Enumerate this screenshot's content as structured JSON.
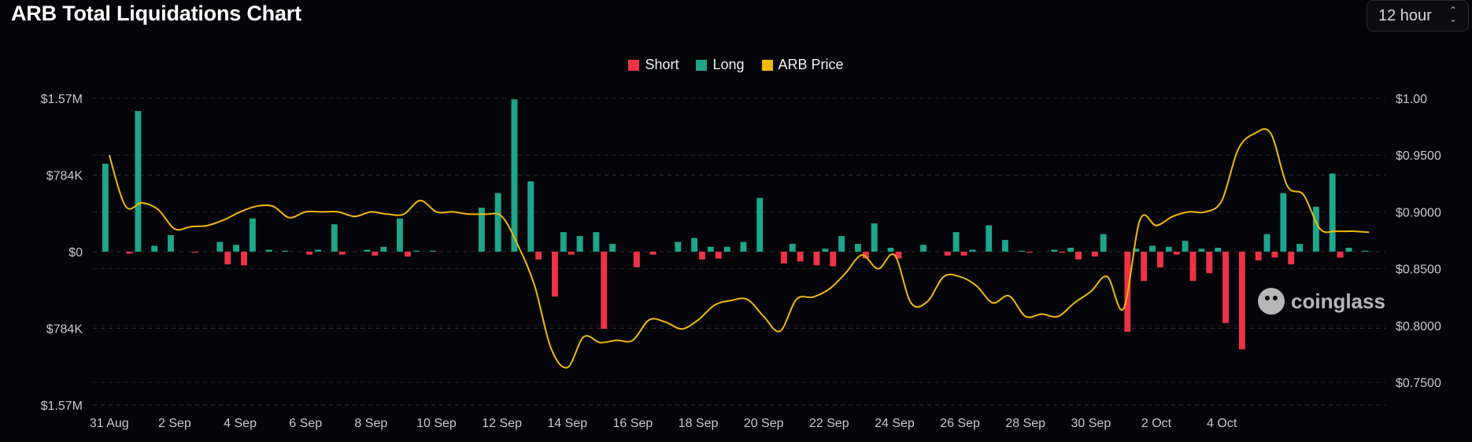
{
  "title": "ARB Total Liquidations Chart",
  "interval": {
    "label": "12 hour"
  },
  "legend": [
    {
      "name": "Short",
      "color": "#ee3346"
    },
    {
      "name": "Long",
      "color": "#1fa58a"
    },
    {
      "name": "ARB Price",
      "color": "#f0b90b"
    }
  ],
  "watermark": "coinglass",
  "chart_data": {
    "type": "bar",
    "title": "ARB Total Liquidations Chart",
    "x_labels": [
      "31 Aug",
      "2 Sep",
      "4 Sep",
      "6 Sep",
      "8 Sep",
      "10 Sep",
      "12 Sep",
      "14 Sep",
      "16 Sep",
      "18 Sep",
      "20 Sep",
      "22 Sep",
      "24 Sep",
      "26 Sep",
      "28 Sep",
      "30 Sep",
      "2 Oct",
      "4 Oct"
    ],
    "y_left_ticks": [
      "$1.57M",
      "$784K",
      "$0",
      "$784K",
      "$1.57M"
    ],
    "y_left_values": [
      1570000,
      784000,
      0,
      -784000,
      -1570000
    ],
    "y_right_ticks": [
      "$1.00",
      "$0.9500",
      "$0.9000",
      "$0.8500",
      "$0.8000",
      "$0.7500"
    ],
    "y_right_values": [
      1.0,
      0.95,
      0.9,
      0.85,
      0.8,
      0.75
    ],
    "ylim_left": [
      -1570000,
      1570000
    ],
    "ylim_right": [
      0.73,
      1.0
    ],
    "grid": true,
    "legend_position": "top-center",
    "points_per_label": 4,
    "series": [
      {
        "name": "Long",
        "values": [
          900000,
          0,
          1440000,
          60000,
          170000,
          0,
          0,
          100000,
          70000,
          340000,
          20000,
          10000,
          0,
          20000,
          280000,
          0,
          20000,
          50000,
          340000,
          10000,
          10000,
          0,
          0,
          450000,
          600000,
          1560000,
          720000,
          0,
          200000,
          160000,
          200000,
          80000,
          0,
          0,
          0,
          100000,
          140000,
          50000,
          50000,
          100000,
          550000,
          0,
          80000,
          0,
          30000,
          160000,
          80000,
          290000,
          40000,
          0,
          70000,
          0,
          200000,
          20000,
          270000,
          120000,
          10000,
          0,
          20000,
          40000,
          0,
          180000,
          0,
          30000,
          60000,
          50000,
          110000,
          30000,
          40000,
          0,
          0,
          180000,
          600000,
          80000,
          460000,
          800000,
          40000,
          10000
        ]
      },
      {
        "name": "Short",
        "values": [
          0,
          -20000,
          0,
          0,
          0,
          -10000,
          0,
          -130000,
          -140000,
          0,
          0,
          0,
          -30000,
          0,
          -30000,
          0,
          -40000,
          0,
          -50000,
          0,
          0,
          0,
          0,
          0,
          0,
          0,
          -80000,
          -460000,
          -30000,
          0,
          -790000,
          0,
          -160000,
          -30000,
          0,
          0,
          -80000,
          -70000,
          0,
          0,
          0,
          -120000,
          -100000,
          -140000,
          -150000,
          0,
          -70000,
          0,
          -70000,
          0,
          0,
          -40000,
          -40000,
          0,
          0,
          0,
          -10000,
          0,
          -10000,
          -80000,
          -50000,
          0,
          -820000,
          -300000,
          -160000,
          -30000,
          -300000,
          -220000,
          -730000,
          -1000000,
          -90000,
          -60000,
          -130000,
          0,
          0,
          -60000,
          0,
          0
        ]
      },
      {
        "name": "ARB Price",
        "values": [
          0.95,
          0.905,
          0.908,
          0.902,
          0.885,
          0.887,
          0.888,
          0.893,
          0.9,
          0.905,
          0.905,
          0.895,
          0.9,
          0.9,
          0.9,
          0.896,
          0.9,
          0.898,
          0.898,
          0.91,
          0.9,
          0.9,
          0.898,
          0.898,
          0.896,
          0.87,
          0.835,
          0.78,
          0.763,
          0.79,
          0.785,
          0.787,
          0.787,
          0.805,
          0.803,
          0.797,
          0.805,
          0.818,
          0.822,
          0.823,
          0.808,
          0.795,
          0.823,
          0.825,
          0.832,
          0.846,
          0.862,
          0.85,
          0.862,
          0.82,
          0.821,
          0.843,
          0.843,
          0.835,
          0.82,
          0.826,
          0.808,
          0.81,
          0.808,
          0.82,
          0.83,
          0.843,
          0.815,
          0.893,
          0.888,
          0.896,
          0.9,
          0.9,
          0.91,
          0.955,
          0.969,
          0.969,
          0.923,
          0.915,
          0.885,
          0.883,
          0.883,
          0.882
        ]
      }
    ]
  }
}
